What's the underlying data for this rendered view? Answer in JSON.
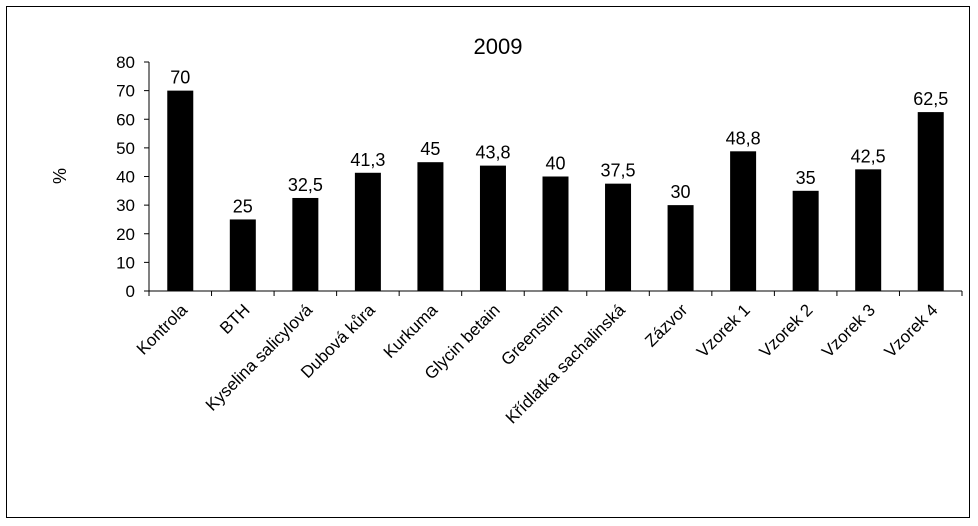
{
  "chart_data": {
    "type": "bar",
    "title": "2009",
    "ylabel": "%",
    "xlabel": "",
    "ylim": [
      0,
      80
    ],
    "yticks": [
      0,
      10,
      20,
      30,
      40,
      50,
      60,
      70,
      80
    ],
    "grid": false,
    "legend": "none",
    "bar_color": "#000000",
    "categories": [
      "Kontrola",
      "BTH",
      "Kyselina salicylová",
      "Dubová kůra",
      "Kurkuma",
      "Glycin betain",
      "Greenstim",
      "Křídlatka sachalinská",
      "Zázvor",
      "Vzorek 1",
      "Vzorek 2",
      "Vzorek 3",
      "Vzorek 4"
    ],
    "values": [
      70,
      25,
      32.5,
      41.3,
      45,
      43.8,
      40,
      37.5,
      30,
      48.8,
      35,
      42.5,
      62.5
    ],
    "data_labels": [
      "70",
      "25",
      "32,5",
      "41,3",
      "45",
      "43,8",
      "40",
      "37,5",
      "30",
      "48,8",
      "35",
      "42,5",
      "62,5"
    ]
  }
}
